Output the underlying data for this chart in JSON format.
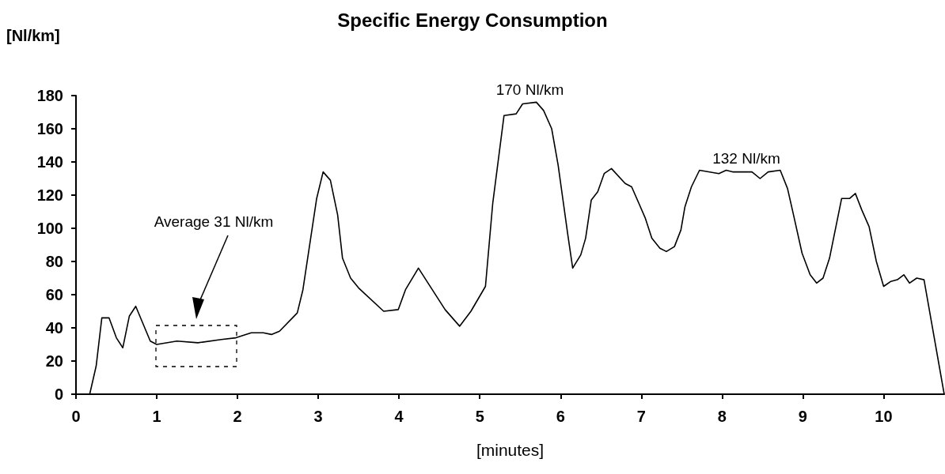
{
  "chart_data": {
    "type": "line",
    "title": "Specific Energy Consumption",
    "ylabel": "[Nl/km]",
    "xlabel": "[minutes]",
    "xlim": [
      0,
      10.75
    ],
    "xticks": [
      0,
      1,
      2,
      3,
      4,
      5,
      6,
      7,
      8,
      9,
      10
    ],
    "ylim": [
      0,
      180
    ],
    "yticks": [
      0,
      20,
      40,
      60,
      80,
      100,
      120,
      140,
      160,
      180
    ],
    "grid": false,
    "marker": "none",
    "line_style": "solid",
    "annotations": [
      "Average 31 Nl/km",
      {
        "text": "170 Nl/km",
        "x": 5.62,
        "y": 176
      },
      {
        "text": "132 Nl/km",
        "x": 8.3,
        "y": 135
      }
    ],
    "series": [
      {
        "color": "#000000",
        "x": [
          0.17,
          0.25,
          0.32,
          0.41,
          0.5,
          0.58,
          0.66,
          0.74,
          0.92,
          1.0,
          1.25,
          1.51,
          1.8,
          1.98,
          2.17,
          2.32,
          2.42,
          2.52,
          2.74,
          2.81,
          2.98,
          3.06,
          3.15,
          3.24,
          3.3,
          3.4,
          3.5,
          3.81,
          3.99,
          4.08,
          4.24,
          4.57,
          4.75,
          4.89,
          5.07,
          5.16,
          5.3,
          5.45,
          5.53,
          5.7,
          5.79,
          5.89,
          5.97,
          6.09,
          6.15,
          6.25,
          6.31,
          6.38,
          6.46,
          6.54,
          6.63,
          6.8,
          6.88,
          6.97,
          7.05,
          7.13,
          7.23,
          7.31,
          7.41,
          7.49,
          7.54,
          7.62,
          7.72,
          7.96,
          8.05,
          8.13,
          8.37,
          8.47,
          8.57,
          8.72,
          8.81,
          8.88,
          8.99,
          9.09,
          9.17,
          9.25,
          9.33,
          9.48,
          9.58,
          9.65,
          9.73,
          9.82,
          9.91,
          10.0,
          10.09,
          10.17,
          10.25,
          10.32,
          10.41,
          10.5,
          10.75
        ],
        "values": [
          0,
          17,
          46,
          46,
          34,
          28,
          47,
          53,
          32,
          30,
          32,
          31,
          33,
          34,
          37,
          37,
          36,
          38,
          49,
          63,
          118,
          134,
          129,
          108,
          82,
          70,
          64,
          50,
          51,
          63,
          76,
          51,
          41,
          50,
          65,
          115,
          168,
          169,
          175,
          176,
          171,
          160,
          138,
          96,
          76,
          84,
          94,
          117,
          122,
          133,
          136,
          127,
          125,
          115,
          106,
          94,
          88,
          86,
          89,
          99,
          113,
          125,
          135,
          133,
          135,
          134,
          134,
          130,
          134,
          135,
          124,
          109,
          85,
          72,
          67,
          70,
          82,
          118,
          118,
          121,
          111,
          101,
          80,
          65,
          68,
          69,
          72,
          67,
          70,
          69,
          0
        ]
      }
    ]
  }
}
